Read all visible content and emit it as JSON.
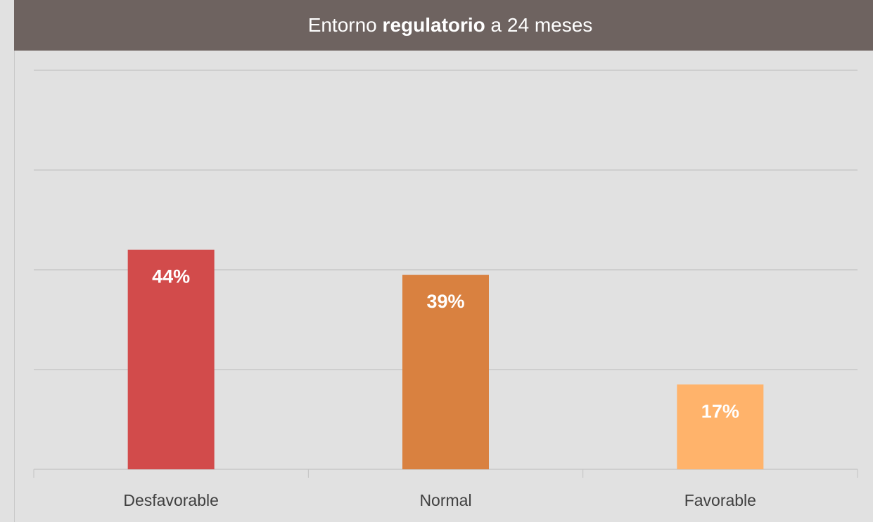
{
  "chart_data": {
    "type": "bar",
    "title": "Entorno regulatorio a 24 meses",
    "title_emphasis": "regulatorio",
    "categories": [
      "Desfavorable",
      "Normal",
      "Favorable"
    ],
    "values": [
      44,
      39,
      17
    ],
    "value_labels": [
      "44%",
      "39%",
      "17%"
    ],
    "colors": [
      "#d24b4b",
      "#d98140",
      "#ffb36b"
    ],
    "ylim": [
      0,
      80
    ],
    "yticks": [
      0,
      20,
      40,
      60,
      80
    ],
    "grid": true
  }
}
